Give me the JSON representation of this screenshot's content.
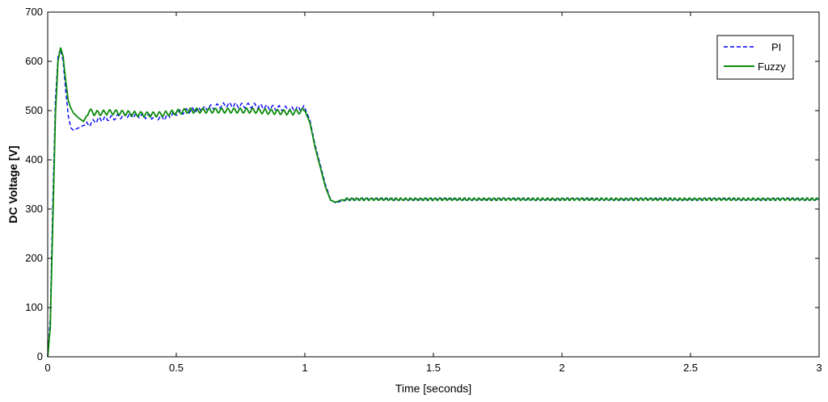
{
  "chart_data": {
    "type": "line",
    "title": "",
    "xlabel": "Time [seconds]",
    "ylabel": "DC Voltage [V]",
    "xlim": [
      0,
      3
    ],
    "ylim": [
      0,
      700
    ],
    "xticks": [
      0,
      0.5,
      1,
      1.5,
      2,
      2.5,
      3
    ],
    "xtick_labels": [
      "0",
      "0.5",
      "1",
      "1.5",
      "2",
      "2.5",
      "3"
    ],
    "yticks": [
      0,
      100,
      200,
      300,
      400,
      500,
      600,
      700
    ],
    "ytick_labels": [
      "0",
      "100",
      "200",
      "300",
      "400",
      "500",
      "600",
      "700"
    ],
    "grid": false,
    "legend_position": "top-right",
    "series": [
      {
        "name": "PI",
        "color": "#0000ff",
        "style": "dashed",
        "x": [
          0,
          0.01,
          0.02,
          0.03,
          0.04,
          0.05,
          0.06,
          0.07,
          0.08,
          0.09,
          0.1,
          0.12,
          0.14,
          0.16,
          0.18,
          0.2,
          0.25,
          0.3,
          0.35,
          0.4,
          0.45,
          0.5,
          0.55,
          0.6,
          0.65,
          0.7,
          0.75,
          0.8,
          0.85,
          0.9,
          0.95,
          1.0,
          1.02,
          1.04,
          1.06,
          1.08,
          1.1,
          1.12,
          1.14,
          1.16,
          1.2,
          1.3,
          1.5,
          2.0,
          2.5,
          3.0
        ],
        "y": [
          0,
          80,
          320,
          520,
          610,
          625,
          600,
          540,
          490,
          465,
          460,
          465,
          470,
          472,
          478,
          482,
          485,
          490,
          490,
          488,
          485,
          495,
          500,
          503,
          508,
          512,
          510,
          510,
          507,
          505,
          503,
          505,
          480,
          430,
          390,
          350,
          320,
          312,
          316,
          320,
          320,
          320,
          320,
          320,
          320,
          320
        ]
      },
      {
        "name": "Fuzzy",
        "color": "#0a8a0a",
        "style": "solid",
        "x": [
          0,
          0.01,
          0.02,
          0.03,
          0.04,
          0.05,
          0.06,
          0.07,
          0.08,
          0.09,
          0.1,
          0.12,
          0.14,
          0.16,
          0.18,
          0.2,
          0.25,
          0.3,
          0.35,
          0.4,
          0.45,
          0.5,
          0.55,
          0.6,
          0.65,
          0.7,
          0.75,
          0.8,
          0.85,
          0.9,
          0.95,
          1.0,
          1.02,
          1.04,
          1.06,
          1.08,
          1.1,
          1.12,
          1.14,
          1.16,
          1.2,
          1.3,
          1.5,
          2.0,
          2.5,
          3.0
        ],
        "y": [
          0,
          60,
          280,
          490,
          600,
          628,
          610,
          560,
          520,
          505,
          495,
          485,
          478,
          500,
          495,
          495,
          497,
          495,
          493,
          492,
          493,
          497,
          500,
          500,
          500,
          500,
          500,
          500,
          498,
          497,
          496,
          500,
          475,
          425,
          385,
          345,
          318,
          314,
          318,
          320,
          320,
          320,
          320,
          320,
          320,
          320
        ]
      }
    ]
  }
}
